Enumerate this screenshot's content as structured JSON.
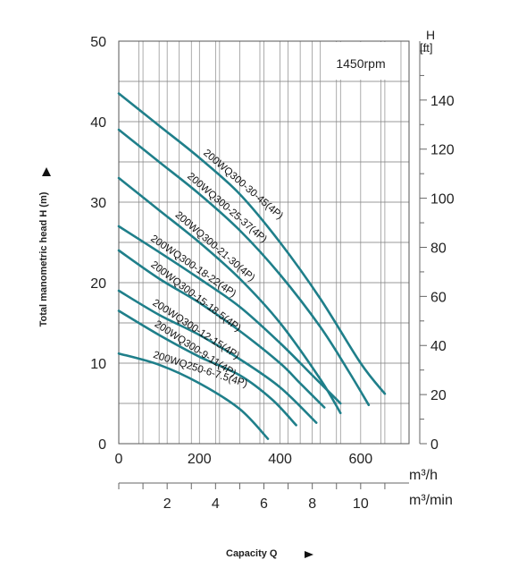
{
  "chart_data": {
    "type": "line",
    "speed_label": "1450rpm",
    "xlabel": "Capacity Q",
    "ylabel": "Total manometric head H (m)",
    "y2_label_top": "H",
    "y2_label_unit": "[ft]",
    "x_unit": "m³/h",
    "x2_unit": "m³/min",
    "xlim": [
      0,
      720
    ],
    "ylim": [
      0,
      50
    ],
    "y2lim": [
      0,
      164
    ],
    "x_ticks": [
      0,
      200,
      400,
      600
    ],
    "x2_ticks": [
      2,
      4,
      6,
      8,
      10
    ],
    "y_ticks": [
      0,
      10,
      20,
      30,
      40,
      50
    ],
    "y2_ticks": [
      0,
      20,
      40,
      60,
      80,
      100,
      120,
      140
    ],
    "grid": true,
    "curve_color": "#1f7f8a",
    "series": [
      {
        "name": "200WQ300-30-45(4P)",
        "x": [
          0,
          100,
          200,
          300,
          400,
          500,
          600,
          660
        ],
        "y": [
          43.5,
          39.5,
          35.5,
          31,
          25,
          18,
          10,
          6.2
        ]
      },
      {
        "name": "200WQ300-25-37(4P)",
        "x": [
          0,
          100,
          200,
          300,
          400,
          500,
          570,
          620
        ],
        "y": [
          39,
          35,
          31,
          26.5,
          21,
          14.5,
          9,
          4.8
        ]
      },
      {
        "name": "200WQ300-21-30(4P)",
        "x": [
          0,
          100,
          200,
          300,
          400,
          500,
          550
        ],
        "y": [
          33,
          29,
          25,
          20.5,
          15,
          8,
          3.8
        ]
      },
      {
        "name": "200WQ300-18-22(4P)",
        "x": [
          0,
          100,
          200,
          300,
          400,
          480,
          550
        ],
        "y": [
          27,
          23.8,
          20.5,
          17,
          12.5,
          8.5,
          5
        ]
      },
      {
        "name": "200WQ300-15-18.5(4P)",
        "x": [
          0,
          100,
          200,
          300,
          400,
          450,
          510
        ],
        "y": [
          24,
          20.5,
          17.5,
          14,
          10,
          7.5,
          4.5
        ]
      },
      {
        "name": "200WQ300-12-15(4P)",
        "x": [
          0,
          100,
          200,
          300,
          400,
          490
        ],
        "y": [
          19,
          16,
          13.5,
          10.5,
          7,
          2.6
        ]
      },
      {
        "name": "200WQ300-9-11(4P)",
        "x": [
          0,
          100,
          200,
          300,
          380,
          440
        ],
        "y": [
          16.5,
          13.5,
          10.8,
          8.5,
          5.5,
          2.3
        ]
      },
      {
        "name": "200WQ250-6-7.5(4P)",
        "x": [
          0,
          100,
          200,
          300,
          370
        ],
        "y": [
          11.2,
          9.8,
          7.5,
          4.3,
          0.6
        ]
      }
    ]
  }
}
